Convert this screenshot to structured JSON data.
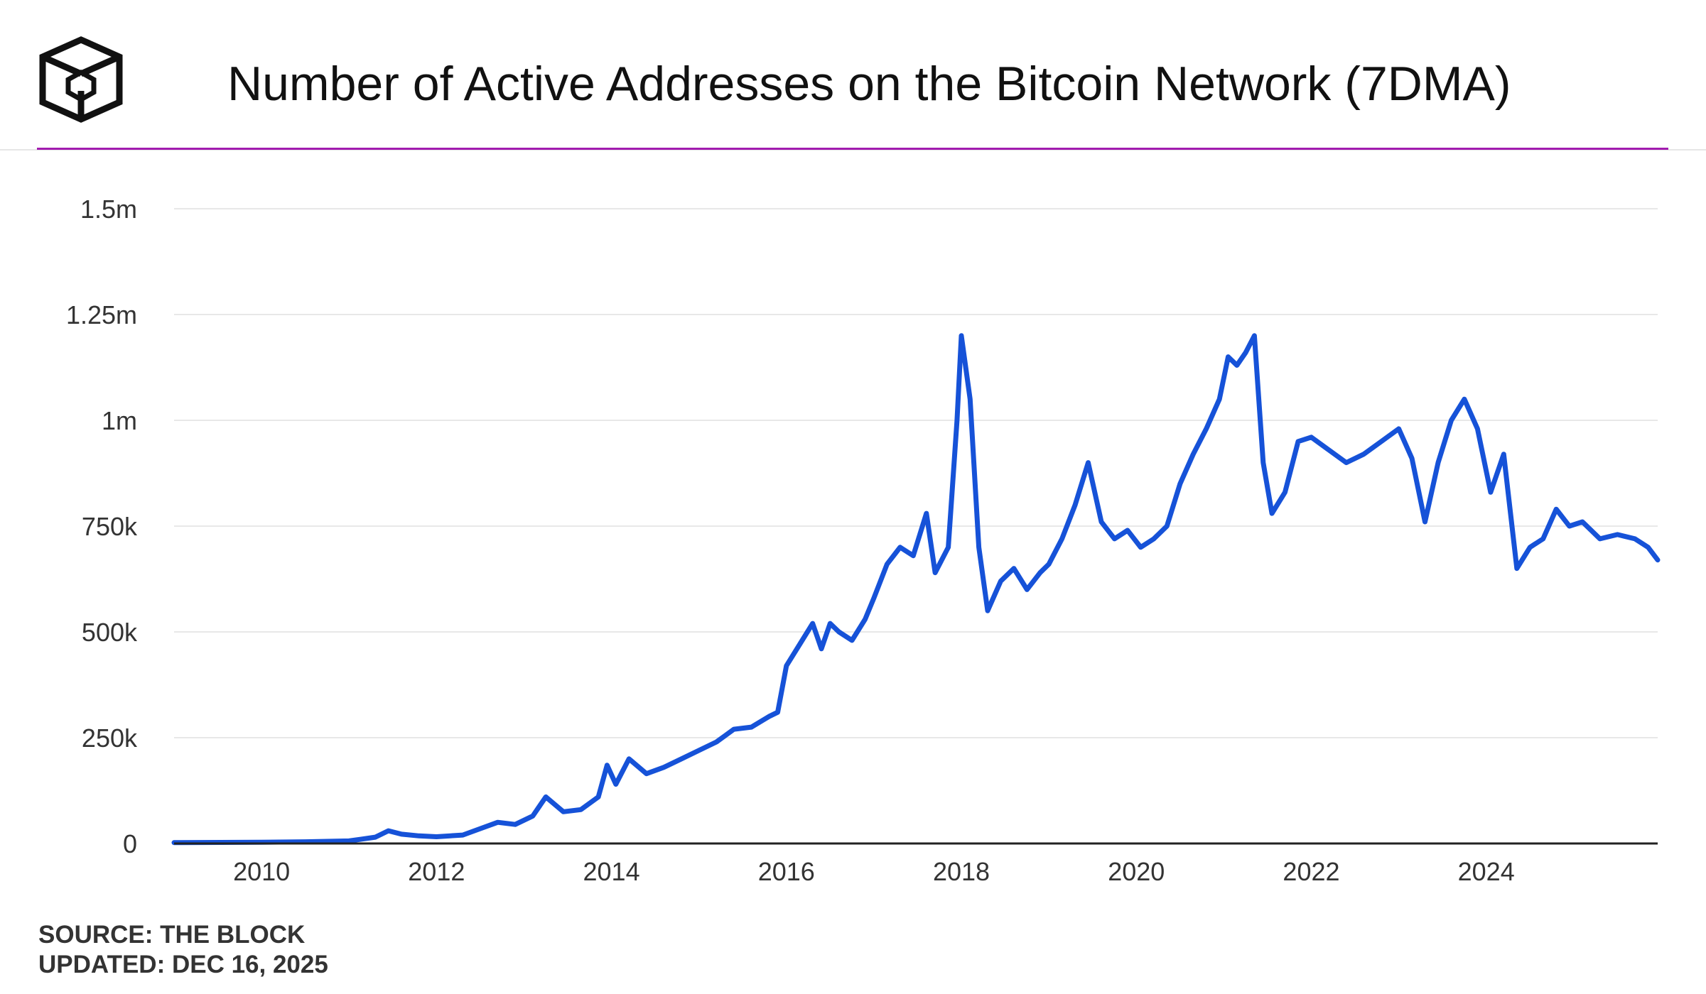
{
  "header": {
    "title": "Number of Active Addresses on the Bitcoin Network (7DMA)",
    "logo_icon": "the-block-cube-icon"
  },
  "footer": {
    "source": "SOURCE: THE BLOCK",
    "updated": "UPDATED: DEC 16, 2025"
  },
  "colors": {
    "accent_rule": "#a21caf",
    "line": "#1652d8",
    "grid": "#e8e8e8"
  },
  "chart_data": {
    "type": "line",
    "title": "Number of Active Addresses on the Bitcoin Network (7DMA)",
    "xlabel": "",
    "ylabel": "",
    "xlim": [
      2009.0,
      2025.96
    ],
    "ylim": [
      0,
      1500000
    ],
    "grid": true,
    "y_ticks": [
      {
        "value": 0,
        "label": "0"
      },
      {
        "value": 250000,
        "label": "250k"
      },
      {
        "value": 500000,
        "label": "500k"
      },
      {
        "value": 750000,
        "label": "750k"
      },
      {
        "value": 1000000,
        "label": "1m"
      },
      {
        "value": 1250000,
        "label": "1.25m"
      },
      {
        "value": 1500000,
        "label": "1.5m"
      }
    ],
    "x_ticks": [
      {
        "value": 2010,
        "label": "2010"
      },
      {
        "value": 2012,
        "label": "2012"
      },
      {
        "value": 2014,
        "label": "2014"
      },
      {
        "value": 2016,
        "label": "2016"
      },
      {
        "value": 2018,
        "label": "2018"
      },
      {
        "value": 2020,
        "label": "2020"
      },
      {
        "value": 2022,
        "label": "2022"
      },
      {
        "value": 2024,
        "label": "2024"
      }
    ],
    "series": [
      {
        "name": "Active addresses (7DMA)",
        "points": [
          [
            2009.0,
            2000
          ],
          [
            2010.0,
            3000
          ],
          [
            2010.5,
            4000
          ],
          [
            2011.0,
            6000
          ],
          [
            2011.3,
            15000
          ],
          [
            2011.45,
            30000
          ],
          [
            2011.6,
            22000
          ],
          [
            2011.8,
            18000
          ],
          [
            2012.0,
            16000
          ],
          [
            2012.3,
            20000
          ],
          [
            2012.5,
            35000
          ],
          [
            2012.7,
            50000
          ],
          [
            2012.9,
            45000
          ],
          [
            2013.1,
            65000
          ],
          [
            2013.25,
            110000
          ],
          [
            2013.45,
            75000
          ],
          [
            2013.65,
            80000
          ],
          [
            2013.85,
            110000
          ],
          [
            2013.95,
            185000
          ],
          [
            2014.05,
            140000
          ],
          [
            2014.2,
            200000
          ],
          [
            2014.4,
            165000
          ],
          [
            2014.6,
            180000
          ],
          [
            2014.8,
            200000
          ],
          [
            2015.0,
            220000
          ],
          [
            2015.2,
            240000
          ],
          [
            2015.4,
            270000
          ],
          [
            2015.6,
            275000
          ],
          [
            2015.8,
            300000
          ],
          [
            2015.9,
            310000
          ],
          [
            2016.0,
            420000
          ],
          [
            2016.15,
            470000
          ],
          [
            2016.3,
            520000
          ],
          [
            2016.4,
            460000
          ],
          [
            2016.5,
            520000
          ],
          [
            2016.6,
            500000
          ],
          [
            2016.75,
            480000
          ],
          [
            2016.9,
            530000
          ],
          [
            2017.0,
            580000
          ],
          [
            2017.15,
            660000
          ],
          [
            2017.3,
            700000
          ],
          [
            2017.45,
            680000
          ],
          [
            2017.6,
            780000
          ],
          [
            2017.7,
            640000
          ],
          [
            2017.85,
            700000
          ],
          [
            2017.95,
            1000000
          ],
          [
            2018.0,
            1200000
          ],
          [
            2018.1,
            1050000
          ],
          [
            2018.2,
            700000
          ],
          [
            2018.3,
            550000
          ],
          [
            2018.45,
            620000
          ],
          [
            2018.6,
            650000
          ],
          [
            2018.75,
            600000
          ],
          [
            2018.9,
            640000
          ],
          [
            2019.0,
            660000
          ],
          [
            2019.15,
            720000
          ],
          [
            2019.3,
            800000
          ],
          [
            2019.45,
            900000
          ],
          [
            2019.6,
            760000
          ],
          [
            2019.75,
            720000
          ],
          [
            2019.9,
            740000
          ],
          [
            2020.05,
            700000
          ],
          [
            2020.2,
            720000
          ],
          [
            2020.35,
            750000
          ],
          [
            2020.5,
            850000
          ],
          [
            2020.65,
            920000
          ],
          [
            2020.8,
            980000
          ],
          [
            2020.95,
            1050000
          ],
          [
            2021.05,
            1150000
          ],
          [
            2021.15,
            1130000
          ],
          [
            2021.25,
            1160000
          ],
          [
            2021.35,
            1200000
          ],
          [
            2021.45,
            900000
          ],
          [
            2021.55,
            780000
          ],
          [
            2021.7,
            830000
          ],
          [
            2021.85,
            950000
          ],
          [
            2022.0,
            960000
          ],
          [
            2022.2,
            930000
          ],
          [
            2022.4,
            900000
          ],
          [
            2022.6,
            920000
          ],
          [
            2022.8,
            950000
          ],
          [
            2023.0,
            980000
          ],
          [
            2023.15,
            910000
          ],
          [
            2023.3,
            760000
          ],
          [
            2023.45,
            900000
          ],
          [
            2023.6,
            1000000
          ],
          [
            2023.75,
            1050000
          ],
          [
            2023.9,
            980000
          ],
          [
            2024.05,
            830000
          ],
          [
            2024.2,
            920000
          ],
          [
            2024.35,
            650000
          ],
          [
            2024.5,
            700000
          ],
          [
            2024.65,
            720000
          ],
          [
            2024.8,
            790000
          ],
          [
            2024.95,
            750000
          ],
          [
            2025.1,
            760000
          ],
          [
            2025.3,
            720000
          ],
          [
            2025.5,
            730000
          ],
          [
            2025.7,
            720000
          ],
          [
            2025.85,
            700000
          ],
          [
            2025.96,
            670000
          ]
        ]
      }
    ]
  }
}
